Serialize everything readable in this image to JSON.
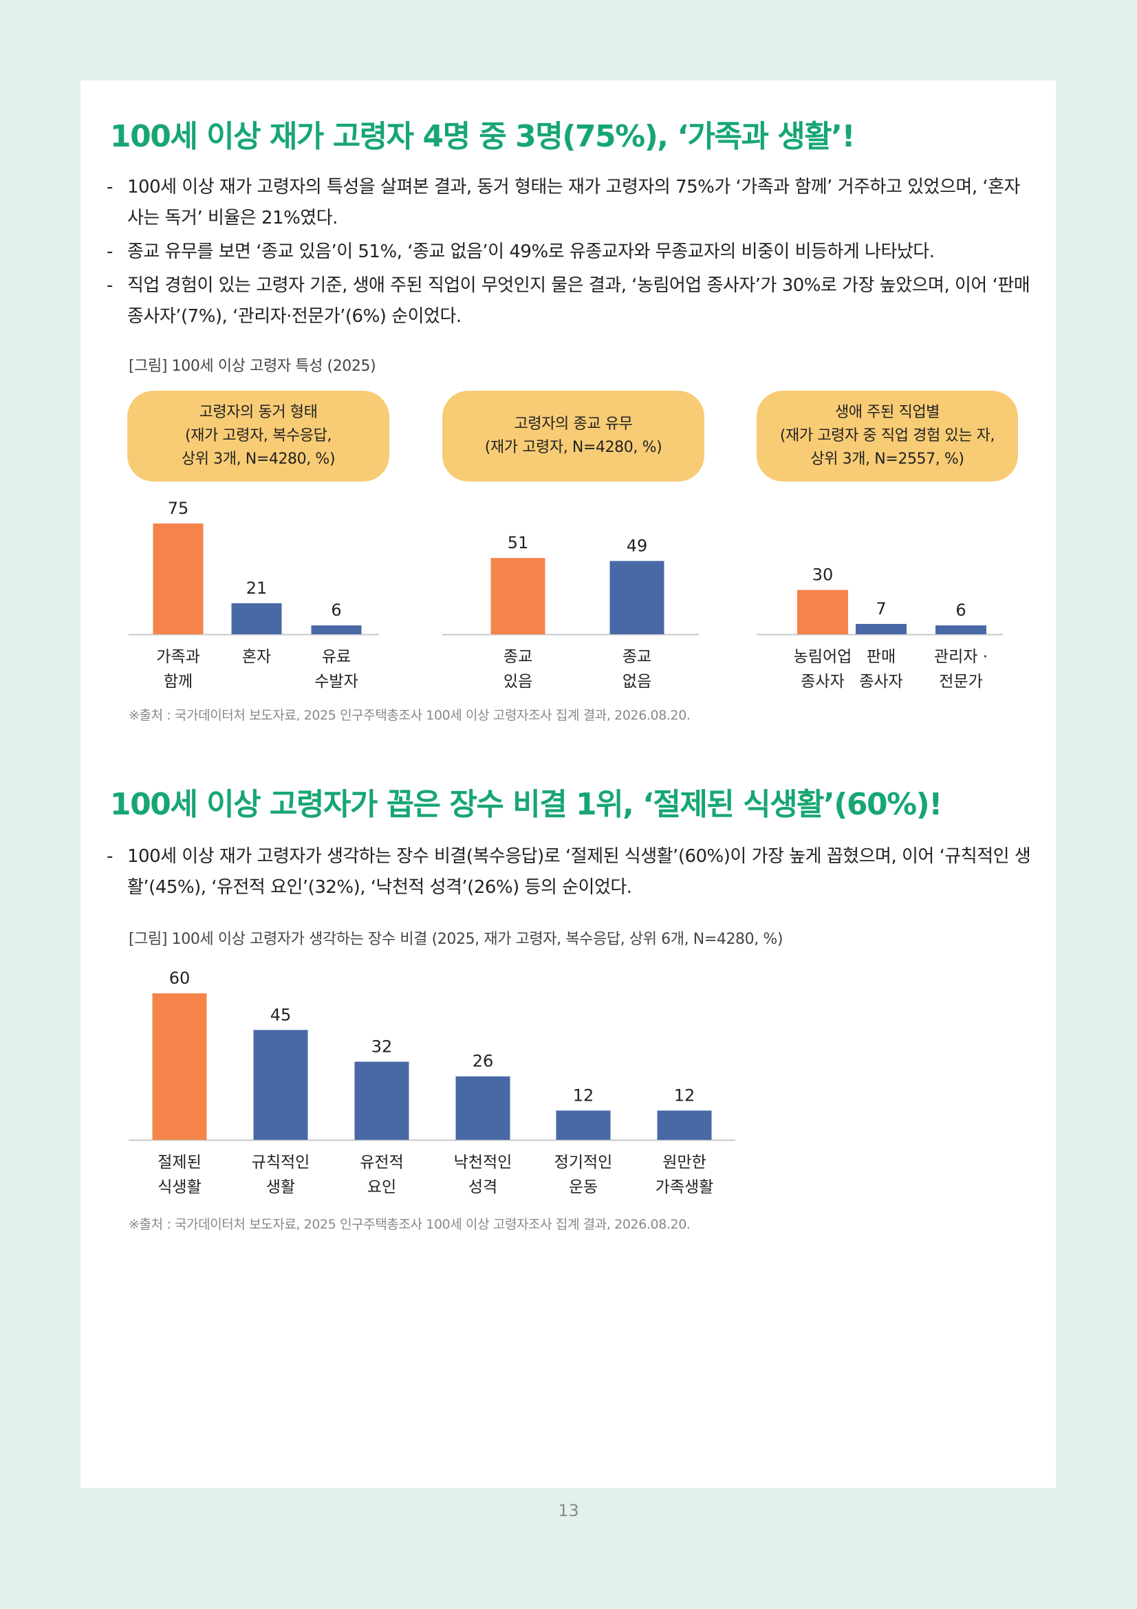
{
  "section1": {
    "title": "100세 이상 재가 고령자 4명 중 3명(75%), ‘가족과 생활’!",
    "bullets": [
      "100세 이상 재가 고령자의 특성을 살펴본 결과, 동거 형태는 재가 고령자의 75%가 ‘가족과 함께’ 거주하고 있었으며, ‘혼자 사는 독거’ 비율은 21%였다.",
      "종교 유무를 보면 ‘종교 있음’이 51%, ‘종교 없음’이 49%로 유종교자와 무종교자의 비중이 비등하게 나타났다.",
      "직업 경험이 있는 고령자 기준, 생애 주된 직업이 무엇인지 물은 결과, ‘농림어업 종사자’가 30%로 가장 높았으며, 이어 ‘판매 종사자’(7%), ‘관리자·전문가’(6%) 순이었다."
    ],
    "figure_caption": "[그림] 100세 이상 고령자 특성 (2025)",
    "source": "※출처 : 국가데이터처 보도자료, 2025 인구주택총조사 100세 이상 고령자조사 집계 결과, 2026.08.20."
  },
  "section2": {
    "title": "100세 이상 고령자가 꼽은 장수 비결 1위, ‘절제된 식생활’(60%)!",
    "bullets": [
      "100세 이상 재가 고령자가 생각하는 장수 비결(복수응답)로 ‘절제된 식생활’(60%)이 가장 높게 꼽혔으며, 이어 ‘규칙적인 생활’(45%), ‘유전적 요인’(32%), ‘낙천적 성격’(26%) 등의 순이었다."
    ],
    "figure_caption": "[그림] 100세 이상 고령자가 생각하는 장수 비결 (2025, 재가 고령자, 복수응답, 상위 6개, N=4280, %)",
    "source": "※출처 : 국가데이터처 보도자료, 2025 인구주택총조사 100세 이상 고령자조사 집계 결과, 2026.08.20."
  },
  "colors": {
    "highlight": "#f4844a",
    "bar": "#4869a6",
    "pill": "#f8cc75",
    "title": "#17a672",
    "background": "#e2f1ec"
  },
  "chart_data": [
    {
      "type": "bar",
      "title_lines": [
        "고령자의 동거 형태",
        "(재가 고령자, 복수응답,",
        "상위 3개, N=4280, %)"
      ],
      "categories": [
        [
          "가족과",
          "함께"
        ],
        [
          "혼자"
        ],
        [
          "유료",
          "수발자"
        ]
      ],
      "values": [
        75,
        21,
        6
      ],
      "highlight_index": 0,
      "ylim": [
        0,
        75
      ]
    },
    {
      "type": "bar",
      "title_lines": [
        "고령자의 종교 유무",
        "(재가 고령자, N=4280, %)"
      ],
      "categories": [
        [
          "종교",
          "있음"
        ],
        [
          "종교",
          "없음"
        ]
      ],
      "values": [
        51,
        49
      ],
      "highlight_index": 0,
      "ylim": [
        0,
        75
      ]
    },
    {
      "type": "bar",
      "title_lines": [
        "생애 주된 직업별",
        "(재가 고령자 중 직업 경험 있는 자,",
        "상위 3개, N=2557, %)"
      ],
      "categories": [
        [
          "농림어업",
          "종사자"
        ],
        [
          "판매",
          "종사자"
        ],
        [
          "관리자 ·",
          "전문가"
        ]
      ],
      "values": [
        30,
        7,
        6
      ],
      "highlight_index": 0,
      "ylim": [
        0,
        75
      ]
    },
    {
      "type": "bar",
      "categories": [
        [
          "절제된",
          "식생활"
        ],
        [
          "규칙적인",
          "생활"
        ],
        [
          "유전적",
          "요인"
        ],
        [
          "낙천적인",
          "성격"
        ],
        [
          "정기적인",
          "운동"
        ],
        [
          "원만한",
          "가족생활"
        ]
      ],
      "values": [
        60,
        45,
        32,
        26,
        12,
        12
      ],
      "highlight_index": 0,
      "ylim": [
        0,
        60
      ]
    }
  ],
  "page_number": "13"
}
